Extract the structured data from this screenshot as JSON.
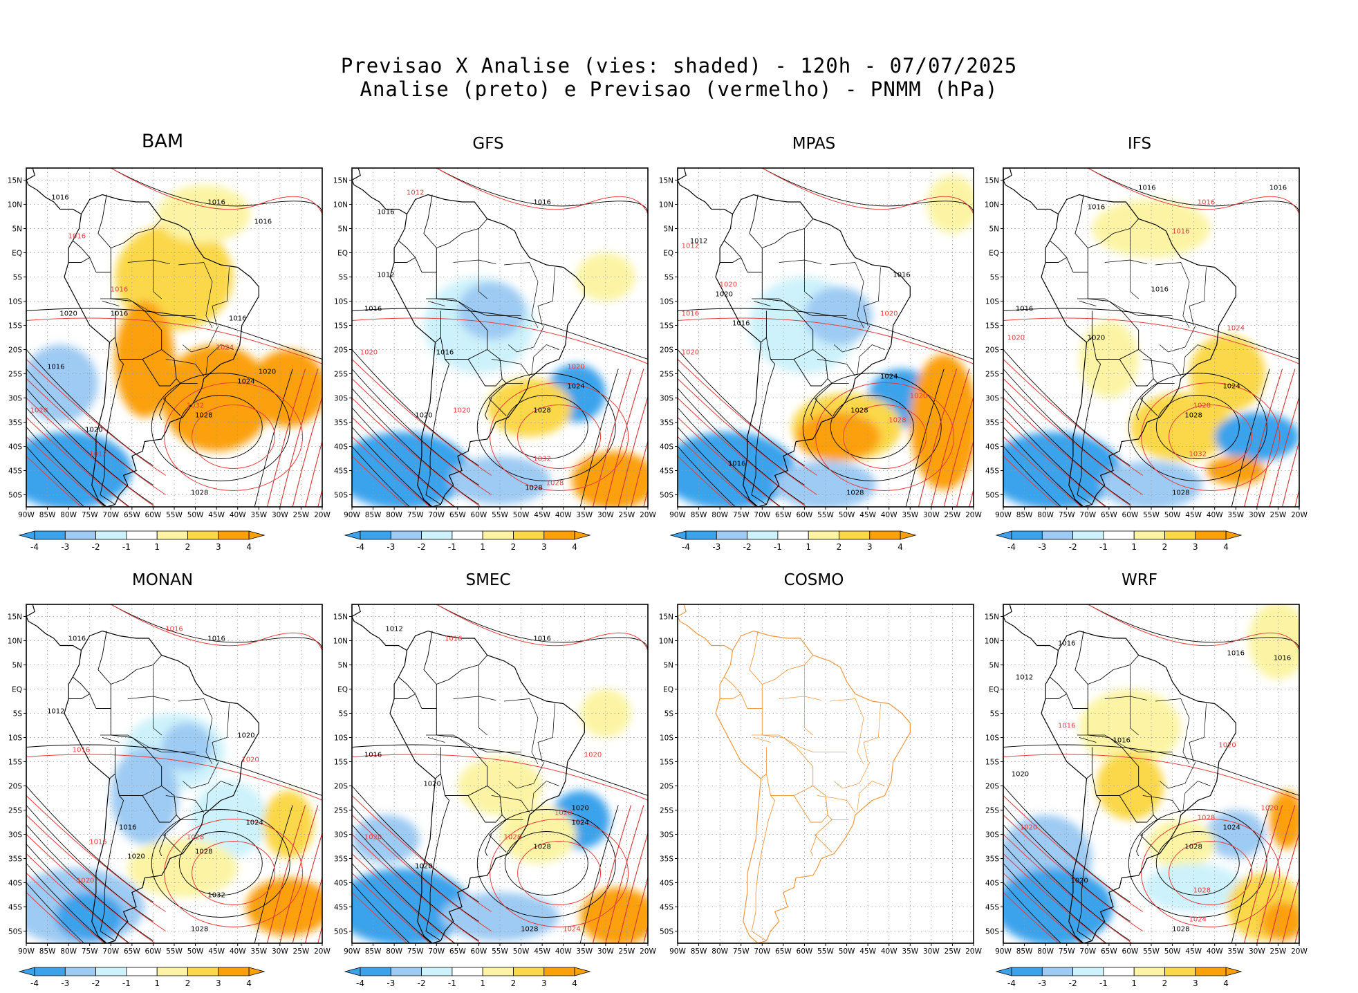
{
  "header": {
    "title_line1": "Previsao X Analise (vies: shaded) - 120h - 07/07/2025",
    "title_line2": "Analise (preto) e Previsao (vermelho) - PNMM (hPa)"
  },
  "colors": {
    "neg4": "#3aa3ec",
    "neg3": "#9ecbf3",
    "neg2": "#cdf2fb",
    "pos2": "#fcf4a4",
    "pos3": "#fbd84a",
    "pos4": "#fca00a",
    "analysis": "#000000",
    "forecast": "#e83c3c",
    "coast_cosmo": "#f0963c"
  },
  "axes": {
    "lat_labels": [
      "15N",
      "10N",
      "5N",
      "EQ",
      "5S",
      "10S",
      "15S",
      "20S",
      "25S",
      "30S",
      "35S",
      "40S",
      "45S",
      "50S"
    ],
    "lon_labels": [
      "90W",
      "85W",
      "80W",
      "75W",
      "70W",
      "65W",
      "60W",
      "55W",
      "50W",
      "45W",
      "40W",
      "35W",
      "30W",
      "25W",
      "20W"
    ]
  },
  "colorbar": {
    "labels": [
      "-4",
      "-3",
      "-2",
      "-1",
      "1",
      "2",
      "3",
      "4"
    ]
  },
  "panels": [
    {
      "name": "BAM",
      "big_title": true,
      "has_colorbar": true,
      "anomalies": [
        {
          "lon": -55,
          "lat": -5,
          "rx": 14,
          "ry": 11,
          "level": 3
        },
        {
          "lon": -45,
          "lat": -30,
          "rx": 13,
          "ry": 11,
          "level": 4
        },
        {
          "lon": -28,
          "lat": -28,
          "rx": 9,
          "ry": 8,
          "level": 4
        },
        {
          "lon": -62,
          "lat": -22,
          "rx": 7,
          "ry": 12,
          "level": 4
        },
        {
          "lon": -48,
          "lat": 8,
          "rx": 11,
          "ry": 6,
          "level": 2
        },
        {
          "lon": -80,
          "lat": -45,
          "rx": 15,
          "ry": 8,
          "level": -4
        },
        {
          "lon": -82,
          "lat": -27,
          "rx": 9,
          "ry": 8,
          "level": -3
        }
      ],
      "analysis_labels": [
        {
          "lon": -82,
          "lat": 11,
          "text": "1016"
        },
        {
          "lon": -45,
          "lat": 10,
          "text": "1016"
        },
        {
          "lon": -34,
          "lat": 6,
          "text": "1016"
        },
        {
          "lon": -68,
          "lat": -13,
          "text": "1016"
        },
        {
          "lon": -40,
          "lat": -14,
          "text": "1016"
        },
        {
          "lon": -83,
          "lat": -24,
          "text": "1016"
        },
        {
          "lon": -80,
          "lat": -13,
          "text": "1020"
        },
        {
          "lon": -38,
          "lat": -27,
          "text": "1024"
        },
        {
          "lon": -48,
          "lat": -34,
          "text": "1028"
        },
        {
          "lon": -49,
          "lat": -50,
          "text": "1028"
        },
        {
          "lon": -33,
          "lat": -25,
          "text": "1020"
        },
        {
          "lon": -74,
          "lat": -37,
          "text": "1020"
        }
      ],
      "forecast_labels": [
        {
          "lon": -78,
          "lat": 3,
          "text": "1016"
        },
        {
          "lon": -68,
          "lat": -8,
          "text": "1016"
        },
        {
          "lon": -50,
          "lat": -32,
          "text": "1032"
        },
        {
          "lon": -87,
          "lat": -33,
          "text": "1020"
        },
        {
          "lon": -43,
          "lat": -20,
          "text": "1024"
        },
        {
          "lon": -73,
          "lat": -42,
          "text": "1012"
        }
      ]
    },
    {
      "name": "GFS",
      "big_title": false,
      "has_colorbar": true,
      "anomalies": [
        {
          "lon": -60,
          "lat": -15,
          "rx": 13,
          "ry": 10,
          "level": -2
        },
        {
          "lon": -57,
          "lat": -12,
          "rx": 8,
          "ry": 6,
          "level": -3
        },
        {
          "lon": -37,
          "lat": -29,
          "rx": 7,
          "ry": 6,
          "level": -4
        },
        {
          "lon": -48,
          "lat": -32,
          "rx": 10,
          "ry": 6,
          "level": 3
        },
        {
          "lon": -28,
          "lat": -47,
          "rx": 10,
          "ry": 6,
          "level": 4
        },
        {
          "lon": -78,
          "lat": -45,
          "rx": 16,
          "ry": 8,
          "level": -4
        },
        {
          "lon": -55,
          "lat": -47,
          "rx": 12,
          "ry": 5,
          "level": -3
        },
        {
          "lon": -30,
          "lat": -5,
          "rx": 7,
          "ry": 5,
          "level": 2
        }
      ],
      "analysis_labels": [
        {
          "lon": -82,
          "lat": 8,
          "text": "1016"
        },
        {
          "lon": -45,
          "lat": 10,
          "text": "1016"
        },
        {
          "lon": -85,
          "lat": -12,
          "text": "1016"
        },
        {
          "lon": -68,
          "lat": -21,
          "text": "1016"
        },
        {
          "lon": -37,
          "lat": -28,
          "text": "1024"
        },
        {
          "lon": -45,
          "lat": -33,
          "text": "1028"
        },
        {
          "lon": -47,
          "lat": -49,
          "text": "1028"
        },
        {
          "lon": -73,
          "lat": -34,
          "text": "1020"
        },
        {
          "lon": -82,
          "lat": -5,
          "text": "1012"
        }
      ],
      "forecast_labels": [
        {
          "lon": -75,
          "lat": 12,
          "text": "1012"
        },
        {
          "lon": -86,
          "lat": -21,
          "text": "1020"
        },
        {
          "lon": -37,
          "lat": -24,
          "text": "1020"
        },
        {
          "lon": -45,
          "lat": -43,
          "text": "1032"
        },
        {
          "lon": -42,
          "lat": -48,
          "text": "1028"
        },
        {
          "lon": -64,
          "lat": -33,
          "text": "1020"
        }
      ]
    },
    {
      "name": "MPAS",
      "big_title": false,
      "has_colorbar": true,
      "anomalies": [
        {
          "lon": -60,
          "lat": -15,
          "rx": 13,
          "ry": 10,
          "level": -2
        },
        {
          "lon": -52,
          "lat": -13,
          "rx": 8,
          "ry": 6,
          "level": -3
        },
        {
          "lon": -37,
          "lat": -30,
          "rx": 8,
          "ry": 6,
          "level": -4
        },
        {
          "lon": -50,
          "lat": -36,
          "rx": 13,
          "ry": 7,
          "level": 3
        },
        {
          "lon": -27,
          "lat": -35,
          "rx": 8,
          "ry": 14,
          "level": 4
        },
        {
          "lon": -52,
          "lat": -38,
          "rx": 10,
          "ry": 5,
          "level": 4
        },
        {
          "lon": -78,
          "lat": -45,
          "rx": 16,
          "ry": 8,
          "level": -4
        },
        {
          "lon": -55,
          "lat": -48,
          "rx": 12,
          "ry": 5,
          "level": -3
        },
        {
          "lon": -25,
          "lat": 10,
          "rx": 6,
          "ry": 6,
          "level": 2
        }
      ],
      "analysis_labels": [
        {
          "lon": -85,
          "lat": 2,
          "text": "1012"
        },
        {
          "lon": -75,
          "lat": -15,
          "text": "1016"
        },
        {
          "lon": -79,
          "lat": -9,
          "text": "1020"
        },
        {
          "lon": -40,
          "lat": -26,
          "text": "1024"
        },
        {
          "lon": -47,
          "lat": -33,
          "text": "1028"
        },
        {
          "lon": -48,
          "lat": -50,
          "text": "1028"
        },
        {
          "lon": -76,
          "lat": -44,
          "text": "1016"
        },
        {
          "lon": -37,
          "lat": -5,
          "text": "1016"
        }
      ],
      "forecast_labels": [
        {
          "lon": -87,
          "lat": 1,
          "text": "1012"
        },
        {
          "lon": -87,
          "lat": -13,
          "text": "1016"
        },
        {
          "lon": -87,
          "lat": -21,
          "text": "1020"
        },
        {
          "lon": -33,
          "lat": -30,
          "text": "1020"
        },
        {
          "lon": -38,
          "lat": -35,
          "text": "1028"
        },
        {
          "lon": -40,
          "lat": -13,
          "text": "1020"
        },
        {
          "lon": -78,
          "lat": -7,
          "text": "1020"
        }
      ]
    },
    {
      "name": "IFS",
      "big_title": false,
      "has_colorbar": true,
      "anomalies": [
        {
          "lon": -55,
          "lat": 5,
          "rx": 14,
          "ry": 6,
          "level": 2
        },
        {
          "lon": -37,
          "lat": -25,
          "rx": 9,
          "ry": 8,
          "level": 3
        },
        {
          "lon": -48,
          "lat": -36,
          "rx": 12,
          "ry": 7,
          "level": 3
        },
        {
          "lon": -30,
          "lat": -38,
          "rx": 10,
          "ry": 5,
          "level": -4
        },
        {
          "lon": -65,
          "lat": -22,
          "rx": 7,
          "ry": 8,
          "level": 2
        },
        {
          "lon": -78,
          "lat": -45,
          "rx": 16,
          "ry": 8,
          "level": -4
        },
        {
          "lon": -55,
          "lat": -48,
          "rx": 12,
          "ry": 5,
          "level": -3
        },
        {
          "lon": -35,
          "lat": -45,
          "rx": 7,
          "ry": 3,
          "level": 4
        }
      ],
      "analysis_labels": [
        {
          "lon": -56,
          "lat": 13,
          "text": "1016"
        },
        {
          "lon": -25,
          "lat": 13,
          "text": "1016"
        },
        {
          "lon": -68,
          "lat": 9,
          "text": "1016"
        },
        {
          "lon": -53,
          "lat": -8,
          "text": "1016"
        },
        {
          "lon": -85,
          "lat": -12,
          "text": "1016"
        },
        {
          "lon": -68,
          "lat": -18,
          "text": "1020"
        },
        {
          "lon": -36,
          "lat": -28,
          "text": "1024"
        },
        {
          "lon": -45,
          "lat": -34,
          "text": "1028"
        },
        {
          "lon": -48,
          "lat": -50,
          "text": "1028"
        }
      ],
      "forecast_labels": [
        {
          "lon": -42,
          "lat": 10,
          "text": "1016"
        },
        {
          "lon": -87,
          "lat": -18,
          "text": "1020"
        },
        {
          "lon": -43,
          "lat": -32,
          "text": "1028"
        },
        {
          "lon": -44,
          "lat": -42,
          "text": "1032"
        },
        {
          "lon": -35,
          "lat": -16,
          "text": "1024"
        },
        {
          "lon": -48,
          "lat": 4,
          "text": "1016"
        }
      ]
    },
    {
      "name": "MONAN",
      "big_title": false,
      "has_colorbar": true,
      "anomalies": [
        {
          "lon": -55,
          "lat": -13,
          "rx": 12,
          "ry": 8,
          "level": -2
        },
        {
          "lon": -52,
          "lat": -12,
          "rx": 6,
          "ry": 5,
          "level": -3
        },
        {
          "lon": -62,
          "lat": -22,
          "rx": 8,
          "ry": 10,
          "level": -3
        },
        {
          "lon": -42,
          "lat": -27,
          "rx": 9,
          "ry": 8,
          "level": -2
        },
        {
          "lon": -53,
          "lat": -37,
          "rx": 13,
          "ry": 6,
          "level": 2
        },
        {
          "lon": -28,
          "lat": -45,
          "rx": 10,
          "ry": 6,
          "level": 4
        },
        {
          "lon": -78,
          "lat": -45,
          "rx": 16,
          "ry": 8,
          "level": -3
        },
        {
          "lon": -75,
          "lat": -47,
          "rx": 8,
          "ry": 5,
          "level": -4
        },
        {
          "lon": -28,
          "lat": -28,
          "rx": 6,
          "ry": 7,
          "level": 3
        }
      ],
      "analysis_labels": [
        {
          "lon": -78,
          "lat": 10,
          "text": "1016"
        },
        {
          "lon": -45,
          "lat": 10,
          "text": "1016"
        },
        {
          "lon": -83,
          "lat": -5,
          "text": "1012"
        },
        {
          "lon": -38,
          "lat": -10,
          "text": "1020"
        },
        {
          "lon": -66,
          "lat": -29,
          "text": "1016"
        },
        {
          "lon": -36,
          "lat": -28,
          "text": "1024"
        },
        {
          "lon": -48,
          "lat": -34,
          "text": "1028"
        },
        {
          "lon": -45,
          "lat": -43,
          "text": "1032"
        },
        {
          "lon": -49,
          "lat": -50,
          "text": "1028"
        },
        {
          "lon": -64,
          "lat": -35,
          "text": "1020"
        }
      ],
      "forecast_labels": [
        {
          "lon": -55,
          "lat": 12,
          "text": "1016"
        },
        {
          "lon": -77,
          "lat": -13,
          "text": "1016"
        },
        {
          "lon": -50,
          "lat": -31,
          "text": "1028"
        },
        {
          "lon": -73,
          "lat": -32,
          "text": "1016"
        },
        {
          "lon": -37,
          "lat": -15,
          "text": "1020"
        },
        {
          "lon": -76,
          "lat": -40,
          "text": "1020"
        }
      ]
    },
    {
      "name": "SMEC",
      "big_title": false,
      "has_colorbar": true,
      "anomalies": [
        {
          "lon": -55,
          "lat": -20,
          "rx": 10,
          "ry": 6,
          "level": 2
        },
        {
          "lon": -36,
          "lat": -27,
          "rx": 7,
          "ry": 6,
          "level": -4
        },
        {
          "lon": -46,
          "lat": -30,
          "rx": 9,
          "ry": 6,
          "level": 2
        },
        {
          "lon": -27,
          "lat": -47,
          "rx": 9,
          "ry": 6,
          "level": 4
        },
        {
          "lon": -78,
          "lat": -45,
          "rx": 16,
          "ry": 8,
          "level": -4
        },
        {
          "lon": -55,
          "lat": -47,
          "rx": 14,
          "ry": 5,
          "level": -3
        },
        {
          "lon": -82,
          "lat": -31,
          "rx": 8,
          "ry": 5,
          "level": -3
        },
        {
          "lon": -30,
          "lat": -5,
          "rx": 6,
          "ry": 5,
          "level": 2
        }
      ],
      "analysis_labels": [
        {
          "lon": -80,
          "lat": 12,
          "text": "1012"
        },
        {
          "lon": -45,
          "lat": 10,
          "text": "1016"
        },
        {
          "lon": -85,
          "lat": -14,
          "text": "1016"
        },
        {
          "lon": -71,
          "lat": -20,
          "text": "1020"
        },
        {
          "lon": -36,
          "lat": -28,
          "text": "1024"
        },
        {
          "lon": -45,
          "lat": -33,
          "text": "1028"
        },
        {
          "lon": -48,
          "lat": -50,
          "text": "1028"
        },
        {
          "lon": -73,
          "lat": -37,
          "text": "1020"
        },
        {
          "lon": -36,
          "lat": -25,
          "text": "1020"
        }
      ],
      "forecast_labels": [
        {
          "lon": -66,
          "lat": 10,
          "text": "1016"
        },
        {
          "lon": -85,
          "lat": -31,
          "text": "1020"
        },
        {
          "lon": -33,
          "lat": -14,
          "text": "1020"
        },
        {
          "lon": -40,
          "lat": -26,
          "text": "1020"
        },
        {
          "lon": -52,
          "lat": -31,
          "text": "1028"
        },
        {
          "lon": -38,
          "lat": -50,
          "text": "1024"
        }
      ]
    },
    {
      "name": "COSMO",
      "big_title": false,
      "has_colorbar": false,
      "anomalies": [],
      "analysis_labels": [],
      "forecast_labels": []
    },
    {
      "name": "WRF",
      "big_title": false,
      "has_colorbar": true,
      "anomalies": [
        {
          "lon": -60,
          "lat": -8,
          "rx": 12,
          "ry": 8,
          "level": 2
        },
        {
          "lon": -60,
          "lat": -20,
          "rx": 8,
          "ry": 7,
          "level": 3
        },
        {
          "lon": -25,
          "lat": 10,
          "rx": 7,
          "ry": 8,
          "level": 2
        },
        {
          "lon": -23,
          "lat": -27,
          "rx": 4,
          "ry": 6,
          "level": 4
        },
        {
          "lon": -35,
          "lat": -30,
          "rx": 7,
          "ry": 5,
          "level": -3
        },
        {
          "lon": -48,
          "lat": -32,
          "rx": 8,
          "ry": 5,
          "level": 2
        },
        {
          "lon": -80,
          "lat": -35,
          "rx": 11,
          "ry": 9,
          "level": -3
        },
        {
          "lon": -78,
          "lat": -45,
          "rx": 14,
          "ry": 8,
          "level": -4
        },
        {
          "lon": -45,
          "lat": -41,
          "rx": 12,
          "ry": 5,
          "level": -2
        },
        {
          "lon": -28,
          "lat": -45,
          "rx": 9,
          "ry": 7,
          "level": 3
        },
        {
          "lon": -24,
          "lat": -48,
          "rx": 5,
          "ry": 4,
          "level": 4
        }
      ],
      "analysis_labels": [
        {
          "lon": -75,
          "lat": 9,
          "text": "1016"
        },
        {
          "lon": -35,
          "lat": 7,
          "text": "1016"
        },
        {
          "lon": -85,
          "lat": 2,
          "text": "1012"
        },
        {
          "lon": -62,
          "lat": -11,
          "text": "1016"
        },
        {
          "lon": -36,
          "lat": -29,
          "text": "1024"
        },
        {
          "lon": -45,
          "lat": -33,
          "text": "1028"
        },
        {
          "lon": -48,
          "lat": -50,
          "text": "1028"
        },
        {
          "lon": -72,
          "lat": -40,
          "text": "1020"
        },
        {
          "lon": -86,
          "lat": -18,
          "text": "1020"
        },
        {
          "lon": -24,
          "lat": 6,
          "text": "1016"
        }
      ],
      "forecast_labels": [
        {
          "lon": -37,
          "lat": -12,
          "text": "1020"
        },
        {
          "lon": -75,
          "lat": -8,
          "text": "1016"
        },
        {
          "lon": -84,
          "lat": -29,
          "text": "1020"
        },
        {
          "lon": -42,
          "lat": -27,
          "text": "1028"
        },
        {
          "lon": -43,
          "lat": -42,
          "text": "1028"
        },
        {
          "lon": -44,
          "lat": -48,
          "text": "1024"
        },
        {
          "lon": -27,
          "lat": -25,
          "text": "1020"
        }
      ]
    }
  ]
}
